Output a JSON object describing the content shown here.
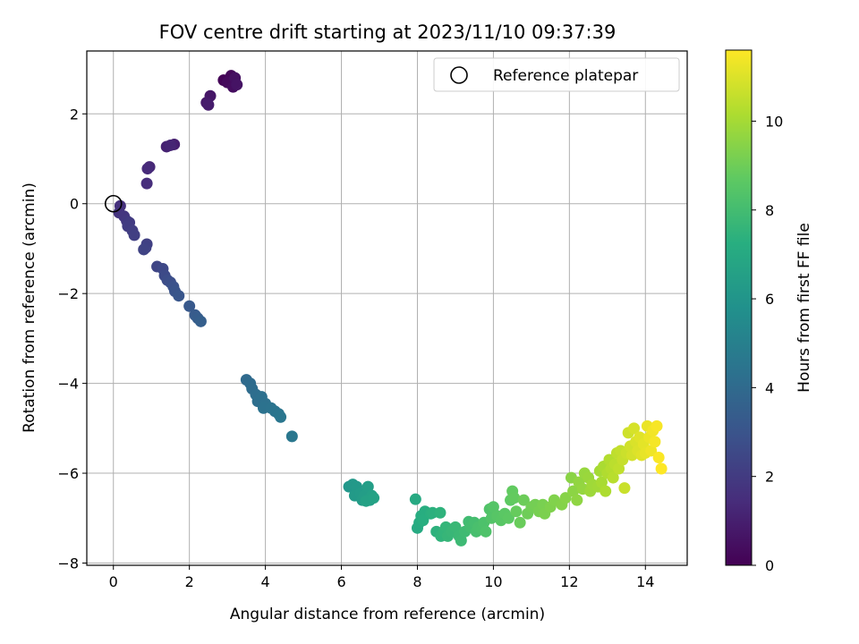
{
  "chart_data": {
    "type": "scatter",
    "title": "FOV centre drift starting at 2023/11/10 09:37:39",
    "xlabel": "Angular distance from reference (arcmin)",
    "ylabel": "Rotation from reference (arcmin)",
    "xlim": [
      -0.7,
      15.1
    ],
    "ylim": [
      -8.05,
      3.4
    ],
    "xticks": [
      0,
      2,
      4,
      6,
      8,
      10,
      12,
      14
    ],
    "yticks": [
      -8,
      -6,
      -4,
      -2,
      0,
      2
    ],
    "grid": true,
    "colormap": "viridis",
    "colorbar": {
      "label": "Hours from first FF file",
      "range": [
        0,
        11.6
      ],
      "ticks": [
        0,
        2,
        4,
        6,
        8,
        10
      ]
    },
    "legend": {
      "position": "top-right",
      "entries": [
        {
          "label": "Reference platepar",
          "marker": "open-circle"
        }
      ]
    },
    "reference_point": {
      "x": 0,
      "y": 0
    },
    "points": [
      {
        "x": 2.9,
        "y": 2.75,
        "t": 0.1
      },
      {
        "x": 3.1,
        "y": 2.85,
        "t": 0.2
      },
      {
        "x": 3.0,
        "y": 2.7,
        "t": 0.3
      },
      {
        "x": 3.15,
        "y": 2.6,
        "t": 0.4
      },
      {
        "x": 3.2,
        "y": 2.8,
        "t": 0.5
      },
      {
        "x": 3.25,
        "y": 2.65,
        "t": 0.6
      },
      {
        "x": 2.55,
        "y": 2.4,
        "t": 0.7
      },
      {
        "x": 2.45,
        "y": 2.25,
        "t": 0.8
      },
      {
        "x": 2.5,
        "y": 2.2,
        "t": 0.9
      },
      {
        "x": 1.6,
        "y": 1.32,
        "t": 1.0
      },
      {
        "x": 1.4,
        "y": 1.27,
        "t": 1.1
      },
      {
        "x": 1.5,
        "y": 1.3,
        "t": 1.2
      },
      {
        "x": 0.95,
        "y": 0.82,
        "t": 1.3
      },
      {
        "x": 0.9,
        "y": 0.78,
        "t": 1.4
      },
      {
        "x": 0.88,
        "y": 0.45,
        "t": 1.5
      },
      {
        "x": 0.18,
        "y": -0.05,
        "t": 1.6
      },
      {
        "x": 0.15,
        "y": -0.2,
        "t": 1.7
      },
      {
        "x": 0.28,
        "y": -0.28,
        "t": 1.8
      },
      {
        "x": 0.35,
        "y": -0.38,
        "t": 1.9
      },
      {
        "x": 0.42,
        "y": -0.42,
        "t": 2.0
      },
      {
        "x": 0.38,
        "y": -0.5,
        "t": 2.05
      },
      {
        "x": 0.5,
        "y": -0.6,
        "t": 2.1
      },
      {
        "x": 0.55,
        "y": -0.7,
        "t": 2.15
      },
      {
        "x": 0.88,
        "y": -0.9,
        "t": 2.2
      },
      {
        "x": 0.85,
        "y": -0.98,
        "t": 2.25
      },
      {
        "x": 0.8,
        "y": -1.02,
        "t": 2.3
      },
      {
        "x": 1.15,
        "y": -1.4,
        "t": 2.4
      },
      {
        "x": 1.3,
        "y": -1.45,
        "t": 2.5
      },
      {
        "x": 1.35,
        "y": -1.6,
        "t": 2.6
      },
      {
        "x": 1.42,
        "y": -1.7,
        "t": 2.7
      },
      {
        "x": 1.5,
        "y": -1.75,
        "t": 2.8
      },
      {
        "x": 1.58,
        "y": -1.85,
        "t": 2.9
      },
      {
        "x": 1.62,
        "y": -1.95,
        "t": 3.0
      },
      {
        "x": 1.72,
        "y": -2.05,
        "t": 3.1
      },
      {
        "x": 2.0,
        "y": -2.28,
        "t": 3.2
      },
      {
        "x": 2.15,
        "y": -2.48,
        "t": 3.3
      },
      {
        "x": 2.22,
        "y": -2.55,
        "t": 3.4
      },
      {
        "x": 2.3,
        "y": -2.62,
        "t": 3.5
      },
      {
        "x": 3.5,
        "y": -3.92,
        "t": 4.0
      },
      {
        "x": 3.6,
        "y": -4.0,
        "t": 4.05
      },
      {
        "x": 3.65,
        "y": -4.12,
        "t": 4.1
      },
      {
        "x": 3.75,
        "y": -4.25,
        "t": 4.15
      },
      {
        "x": 3.8,
        "y": -4.4,
        "t": 4.2
      },
      {
        "x": 3.9,
        "y": -4.3,
        "t": 4.25
      },
      {
        "x": 4.0,
        "y": -4.45,
        "t": 4.3
      },
      {
        "x": 3.95,
        "y": -4.55,
        "t": 4.35
      },
      {
        "x": 4.15,
        "y": -4.55,
        "t": 4.4
      },
      {
        "x": 4.25,
        "y": -4.62,
        "t": 4.45
      },
      {
        "x": 4.35,
        "y": -4.68,
        "t": 4.5
      },
      {
        "x": 4.4,
        "y": -4.75,
        "t": 4.55
      },
      {
        "x": 4.7,
        "y": -5.18,
        "t": 4.6
      },
      {
        "x": 6.2,
        "y": -6.3,
        "t": 6.1
      },
      {
        "x": 6.3,
        "y": -6.25,
        "t": 6.15
      },
      {
        "x": 6.4,
        "y": -6.3,
        "t": 6.2
      },
      {
        "x": 6.35,
        "y": -6.5,
        "t": 6.25
      },
      {
        "x": 6.5,
        "y": -6.45,
        "t": 6.3
      },
      {
        "x": 6.55,
        "y": -6.6,
        "t": 6.35
      },
      {
        "x": 6.6,
        "y": -6.5,
        "t": 6.4
      },
      {
        "x": 6.7,
        "y": -6.3,
        "t": 6.45
      },
      {
        "x": 6.75,
        "y": -6.6,
        "t": 6.5
      },
      {
        "x": 6.8,
        "y": -6.5,
        "t": 6.55
      },
      {
        "x": 6.65,
        "y": -6.62,
        "t": 6.6
      },
      {
        "x": 6.85,
        "y": -6.55,
        "t": 6.65
      },
      {
        "x": 7.95,
        "y": -6.58,
        "t": 7.0
      },
      {
        "x": 8.0,
        "y": -7.22,
        "t": 7.05
      },
      {
        "x": 8.05,
        "y": -7.1,
        "t": 7.1
      },
      {
        "x": 8.1,
        "y": -6.95,
        "t": 7.15
      },
      {
        "x": 8.2,
        "y": -6.85,
        "t": 7.2
      },
      {
        "x": 8.15,
        "y": -7.05,
        "t": 7.25
      },
      {
        "x": 8.35,
        "y": -6.9,
        "t": 7.3
      },
      {
        "x": 8.4,
        "y": -6.88,
        "t": 7.35
      },
      {
        "x": 8.5,
        "y": -7.3,
        "t": 7.4
      },
      {
        "x": 8.6,
        "y": -6.88,
        "t": 7.45
      },
      {
        "x": 8.62,
        "y": -7.4,
        "t": 7.5
      },
      {
        "x": 8.7,
        "y": -7.3,
        "t": 7.55
      },
      {
        "x": 8.75,
        "y": -7.2,
        "t": 7.6
      },
      {
        "x": 8.8,
        "y": -7.4,
        "t": 7.65
      },
      {
        "x": 8.9,
        "y": -7.3,
        "t": 7.7
      },
      {
        "x": 9.0,
        "y": -7.2,
        "t": 7.75
      },
      {
        "x": 9.1,
        "y": -7.4,
        "t": 7.8
      },
      {
        "x": 9.15,
        "y": -7.5,
        "t": 7.85
      },
      {
        "x": 9.25,
        "y": -7.3,
        "t": 7.9
      },
      {
        "x": 9.35,
        "y": -7.08,
        "t": 7.95
      },
      {
        "x": 9.4,
        "y": -7.2,
        "t": 8.0
      },
      {
        "x": 9.5,
        "y": -7.1,
        "t": 8.05
      },
      {
        "x": 9.55,
        "y": -7.3,
        "t": 8.1
      },
      {
        "x": 9.6,
        "y": -7.2,
        "t": 8.15
      },
      {
        "x": 9.7,
        "y": -7.25,
        "t": 8.2
      },
      {
        "x": 9.75,
        "y": -7.1,
        "t": 8.25
      },
      {
        "x": 9.8,
        "y": -7.3,
        "t": 8.3
      },
      {
        "x": 9.9,
        "y": -6.8,
        "t": 8.35
      },
      {
        "x": 9.95,
        "y": -7.0,
        "t": 8.4
      },
      {
        "x": 10.0,
        "y": -6.75,
        "t": 8.45
      },
      {
        "x": 10.1,
        "y": -6.95,
        "t": 8.5
      },
      {
        "x": 10.2,
        "y": -7.05,
        "t": 8.55
      },
      {
        "x": 10.3,
        "y": -6.9,
        "t": 8.6
      },
      {
        "x": 10.4,
        "y": -7.0,
        "t": 8.65
      },
      {
        "x": 10.45,
        "y": -6.6,
        "t": 8.7
      },
      {
        "x": 10.5,
        "y": -6.4,
        "t": 8.75
      },
      {
        "x": 10.55,
        "y": -6.55,
        "t": 8.8
      },
      {
        "x": 10.6,
        "y": -6.85,
        "t": 8.85
      },
      {
        "x": 10.7,
        "y": -7.1,
        "t": 8.9
      },
      {
        "x": 10.8,
        "y": -6.6,
        "t": 8.95
      },
      {
        "x": 10.9,
        "y": -6.9,
        "t": 9.0
      },
      {
        "x": 11.0,
        "y": -6.75,
        "t": 9.05
      },
      {
        "x": 11.1,
        "y": -6.7,
        "t": 9.1
      },
      {
        "x": 11.2,
        "y": -6.85,
        "t": 9.15
      },
      {
        "x": 11.3,
        "y": -6.7,
        "t": 9.2
      },
      {
        "x": 11.35,
        "y": -6.9,
        "t": 9.25
      },
      {
        "x": 11.5,
        "y": -6.75,
        "t": 9.3
      },
      {
        "x": 11.6,
        "y": -6.6,
        "t": 9.35
      },
      {
        "x": 11.8,
        "y": -6.7,
        "t": 9.4
      },
      {
        "x": 11.9,
        "y": -6.55,
        "t": 9.45
      },
      {
        "x": 12.05,
        "y": -6.1,
        "t": 9.5
      },
      {
        "x": 12.1,
        "y": -6.4,
        "t": 9.55
      },
      {
        "x": 12.2,
        "y": -6.6,
        "t": 9.6
      },
      {
        "x": 12.25,
        "y": -6.2,
        "t": 9.65
      },
      {
        "x": 12.35,
        "y": -6.35,
        "t": 9.7
      },
      {
        "x": 12.4,
        "y": -6.0,
        "t": 9.75
      },
      {
        "x": 12.5,
        "y": -6.1,
        "t": 9.8
      },
      {
        "x": 12.55,
        "y": -6.4,
        "t": 9.85
      },
      {
        "x": 12.6,
        "y": -6.25,
        "t": 9.9
      },
      {
        "x": 12.75,
        "y": -6.3,
        "t": 9.95
      },
      {
        "x": 12.8,
        "y": -5.95,
        "t": 10.0
      },
      {
        "x": 12.85,
        "y": -6.2,
        "t": 10.05
      },
      {
        "x": 12.9,
        "y": -5.85,
        "t": 10.1
      },
      {
        "x": 12.95,
        "y": -6.4,
        "t": 10.15
      },
      {
        "x": 13.0,
        "y": -6.0,
        "t": 10.2
      },
      {
        "x": 13.05,
        "y": -5.7,
        "t": 10.25
      },
      {
        "x": 13.1,
        "y": -5.9,
        "t": 10.3
      },
      {
        "x": 13.15,
        "y": -6.1,
        "t": 10.35
      },
      {
        "x": 13.2,
        "y": -5.8,
        "t": 10.4
      },
      {
        "x": 13.25,
        "y": -5.55,
        "t": 10.45
      },
      {
        "x": 13.3,
        "y": -5.9,
        "t": 10.5
      },
      {
        "x": 13.35,
        "y": -5.5,
        "t": 10.55
      },
      {
        "x": 13.4,
        "y": -5.7,
        "t": 10.6
      },
      {
        "x": 13.45,
        "y": -6.33,
        "t": 10.65
      },
      {
        "x": 13.5,
        "y": -5.55,
        "t": 10.7
      },
      {
        "x": 13.55,
        "y": -5.1,
        "t": 10.75
      },
      {
        "x": 13.6,
        "y": -5.4,
        "t": 10.8
      },
      {
        "x": 13.65,
        "y": -5.6,
        "t": 10.85
      },
      {
        "x": 13.7,
        "y": -5.0,
        "t": 10.9
      },
      {
        "x": 13.75,
        "y": -5.3,
        "t": 10.95
      },
      {
        "x": 13.8,
        "y": -5.5,
        "t": 11.0
      },
      {
        "x": 13.85,
        "y": -5.2,
        "t": 11.05
      },
      {
        "x": 13.9,
        "y": -5.6,
        "t": 11.1
      },
      {
        "x": 13.95,
        "y": -5.35,
        "t": 11.15
      },
      {
        "x": 14.0,
        "y": -5.55,
        "t": 11.2
      },
      {
        "x": 14.05,
        "y": -4.95,
        "t": 11.25
      },
      {
        "x": 14.1,
        "y": -5.2,
        "t": 11.3
      },
      {
        "x": 14.15,
        "y": -5.5,
        "t": 11.35
      },
      {
        "x": 14.2,
        "y": -5.05,
        "t": 11.4
      },
      {
        "x": 14.25,
        "y": -5.3,
        "t": 11.45
      },
      {
        "x": 14.3,
        "y": -4.95,
        "t": 11.5
      },
      {
        "x": 14.35,
        "y": -5.65,
        "t": 11.55
      },
      {
        "x": 14.42,
        "y": -5.9,
        "t": 11.6
      }
    ]
  }
}
